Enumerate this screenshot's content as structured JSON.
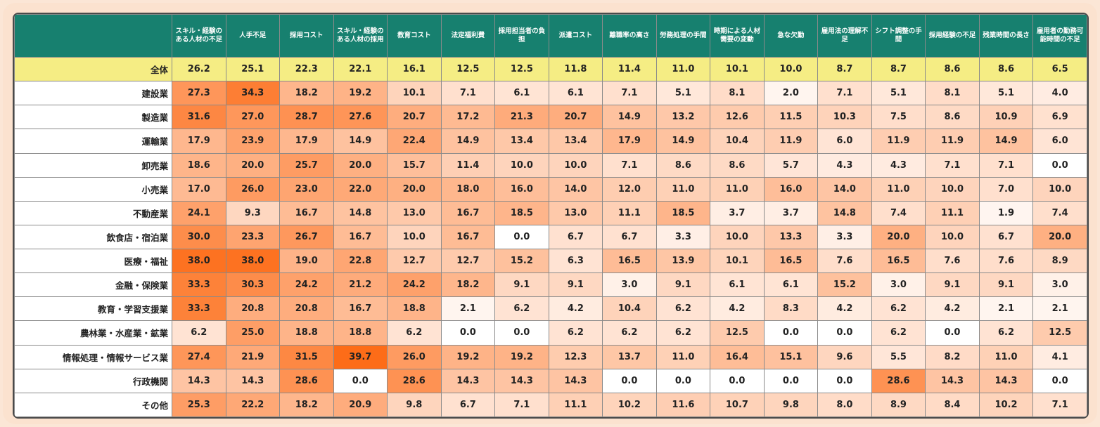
{
  "chart_data": {
    "type": "heatmap",
    "columns": [
      "スキル・経験のある人材の不足",
      "人手不足",
      "採用コスト",
      "スキル・経験のある人材の採用",
      "教育コスト",
      "法定福利費",
      "採用担当者の負担",
      "派遣コスト",
      "離職率の高さ",
      "労務処理の手間",
      "時期による人材需要の変動",
      "急な欠勤",
      "雇用法の理解不足",
      "シフト調整の手間",
      "採用経験の不足",
      "残業時間の長さ",
      "雇用者の勤務可能時間の不足"
    ],
    "rows": [
      {
        "label": "全体",
        "values": [
          26.2,
          25.1,
          22.3,
          22.1,
          16.1,
          12.5,
          12.5,
          11.8,
          11.4,
          11.0,
          10.1,
          10.0,
          8.7,
          8.7,
          8.6,
          8.6,
          6.5
        ]
      },
      {
        "label": "建設業",
        "values": [
          27.3,
          34.3,
          18.2,
          19.2,
          10.1,
          7.1,
          6.1,
          6.1,
          7.1,
          5.1,
          8.1,
          2.0,
          7.1,
          5.1,
          8.1,
          5.1,
          4.0
        ]
      },
      {
        "label": "製造業",
        "values": [
          31.6,
          27.0,
          28.7,
          27.6,
          20.7,
          17.2,
          21.3,
          20.7,
          14.9,
          13.2,
          12.6,
          11.5,
          10.3,
          7.5,
          8.6,
          10.9,
          6.9
        ]
      },
      {
        "label": "運輸業",
        "values": [
          17.9,
          23.9,
          17.9,
          14.9,
          22.4,
          14.9,
          13.4,
          13.4,
          17.9,
          14.9,
          10.4,
          11.9,
          6.0,
          11.9,
          11.9,
          14.9,
          6.0
        ]
      },
      {
        "label": "卸売業",
        "values": [
          18.6,
          20.0,
          25.7,
          20.0,
          15.7,
          11.4,
          10.0,
          10.0,
          7.1,
          8.6,
          8.6,
          5.7,
          4.3,
          4.3,
          7.1,
          7.1,
          0.0
        ]
      },
      {
        "label": "小売業",
        "values": [
          17.0,
          26.0,
          23.0,
          22.0,
          20.0,
          18.0,
          16.0,
          14.0,
          12.0,
          11.0,
          11.0,
          16.0,
          14.0,
          11.0,
          10.0,
          7.0,
          10.0
        ]
      },
      {
        "label": "不動産業",
        "values": [
          24.1,
          9.3,
          16.7,
          14.8,
          13.0,
          16.7,
          18.5,
          13.0,
          11.1,
          18.5,
          3.7,
          3.7,
          14.8,
          7.4,
          11.1,
          1.9,
          7.4
        ]
      },
      {
        "label": "飲食店・宿泊業",
        "values": [
          30.0,
          23.3,
          26.7,
          16.7,
          10.0,
          16.7,
          0.0,
          6.7,
          6.7,
          3.3,
          10.0,
          13.3,
          3.3,
          20.0,
          10.0,
          6.7,
          20.0
        ]
      },
      {
        "label": "医療・福祉",
        "values": [
          38.0,
          38.0,
          19.0,
          22.8,
          12.7,
          12.7,
          15.2,
          6.3,
          16.5,
          13.9,
          10.1,
          16.5,
          7.6,
          16.5,
          7.6,
          7.6,
          8.9
        ]
      },
      {
        "label": "金融・保険業",
        "values": [
          33.3,
          30.3,
          24.2,
          21.2,
          24.2,
          18.2,
          9.1,
          9.1,
          3.0,
          9.1,
          6.1,
          6.1,
          15.2,
          3.0,
          9.1,
          9.1,
          3.0
        ]
      },
      {
        "label": "教育・学習支援業",
        "values": [
          33.3,
          20.8,
          20.8,
          16.7,
          18.8,
          2.1,
          6.2,
          4.2,
          10.4,
          6.2,
          4.2,
          8.3,
          4.2,
          6.2,
          4.2,
          2.1,
          2.1
        ]
      },
      {
        "label": "農林業・水産業・鉱業",
        "values": [
          6.2,
          25.0,
          18.8,
          18.8,
          6.2,
          0.0,
          0.0,
          6.2,
          6.2,
          6.2,
          12.5,
          0.0,
          0.0,
          6.2,
          0.0,
          6.2,
          12.5
        ]
      },
      {
        "label": "情報処理・情報サービス業",
        "values": [
          27.4,
          21.9,
          31.5,
          39.7,
          26.0,
          19.2,
          19.2,
          12.3,
          13.7,
          11.0,
          16.4,
          15.1,
          9.6,
          5.5,
          8.2,
          11.0,
          4.1
        ]
      },
      {
        "label": "行政機関",
        "values": [
          14.3,
          14.3,
          28.6,
          0.0,
          28.6,
          14.3,
          14.3,
          14.3,
          0.0,
          0.0,
          0.0,
          0.0,
          0.0,
          28.6,
          14.3,
          14.3,
          0.0
        ]
      },
      {
        "label": "その他",
        "values": [
          25.3,
          22.2,
          18.2,
          20.9,
          9.8,
          6.7,
          7.1,
          11.1,
          10.2,
          11.6,
          10.7,
          9.8,
          8.0,
          8.9,
          8.4,
          10.2,
          7.1
        ]
      }
    ],
    "colors": {
      "header_bg": "#17806f",
      "header_text": "#ffffff",
      "total_row_bg": "#f5ed84",
      "low": "#ffffff",
      "high": "#fd6b16"
    },
    "value_range": [
      0,
      40
    ]
  }
}
